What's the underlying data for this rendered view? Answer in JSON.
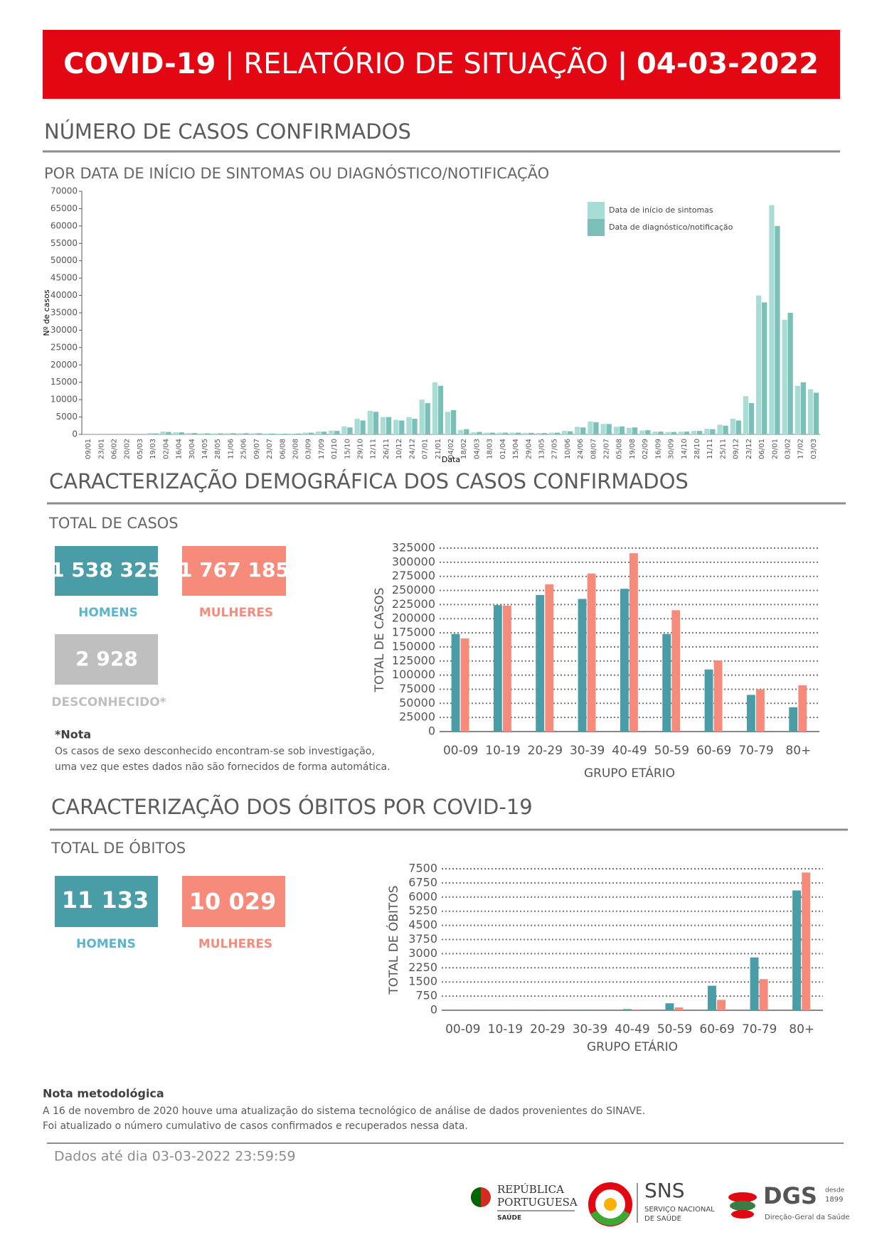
{
  "header": {
    "name": "COVID-19",
    "separator": "|",
    "report": "RELATÓRIO DE SITUAÇÃO",
    "date": "04-03-2022"
  },
  "cases_section": {
    "title": "NÚMERO DE CASOS CONFIRMADOS",
    "subtitle": "POR DATA DE INÍCIO DE SINTOMAS OU DIAGNÓSTICO/NOTIFICAÇÃO"
  },
  "demography": {
    "title": "CARACTERIZAÇÃO DEMOGRÁFICA DOS CASOS CONFIRMADOS",
    "totals_label": "TOTAL DE CASOS",
    "men": {
      "value": "1 538 325",
      "label": "HOMENS"
    },
    "women": {
      "value": "1 767 185",
      "label": "MULHERES"
    },
    "unknown": {
      "value": "2 928",
      "label": "DESCONHECIDO*"
    },
    "note_title": "*Nota",
    "note_lines": [
      "Os casos de sexo desconhecido encontram-se sob investigação,",
      "uma vez que estes dados não são fornecidos de forma automática."
    ]
  },
  "deaths": {
    "title": "CARACTERIZAÇÃO DOS ÓBITOS POR COVID-19",
    "totals_label": "TOTAL DE ÓBITOS",
    "men": {
      "value": "11 133",
      "label": "HOMENS"
    },
    "women": {
      "value": "10 029",
      "label": "MULHERES"
    }
  },
  "methodology": {
    "title": "Nota metodológica",
    "lines": [
      "A 16 de novembro de 2020 houve uma atualização do sistema tecnológico de análise de dados provenientes do SINAVE.",
      "Foi atualizado o número cumulativo de casos confirmados e recuperados nessa data."
    ]
  },
  "footer": {
    "text": "Dados até dia 03-03-2022 23:59:59"
  },
  "logos": {
    "rp_line1": "REPÚBLICA",
    "rp_line2": "PORTUGUESA",
    "rp_sub": "SAÚDE",
    "sns": "SNS",
    "sns_sub1": "SERVIÇO NACIONAL",
    "sns_sub2": "DE SAÚDE",
    "dgs": "DGS",
    "dgs_since1": "desde",
    "dgs_since2": "1899",
    "dgs_sub": "Direção-Geral da Saúde"
  },
  "chart_data": [
    {
      "type": "bar",
      "y_label": "Nº de casos",
      "x_label": "Data",
      "legend": "top-right",
      "grid": false,
      "categories": [
        "09/01",
        "23/01",
        "06/02",
        "20/02",
        "05/03",
        "19/03",
        "02/04",
        "16/04",
        "30/04",
        "14/05",
        "28/05",
        "11/06",
        "25/06",
        "09/07",
        "23/07",
        "06/08",
        "20/08",
        "03/09",
        "17/09",
        "01/10",
        "15/10",
        "29/10",
        "12/11",
        "26/11",
        "10/12",
        "24/12",
        "07/01",
        "21/01",
        "04/02",
        "18/02",
        "04/03",
        "18/03",
        "01/04",
        "15/04",
        "29/04",
        "13/05",
        "27/05",
        "10/06",
        "24/06",
        "08/07",
        "22/07",
        "05/08",
        "19/08",
        "02/09",
        "16/09",
        "30/09",
        "14/10",
        "28/10",
        "11/11",
        "25/11",
        "09/12",
        "23/12",
        "06/01",
        "20/01",
        "03/02",
        "17/02",
        "03/03"
      ],
      "series": [
        {
          "name": "Data de início de sintomas",
          "color": "#a8ddd6",
          "values": [
            0,
            0,
            0,
            0,
            0,
            400,
            800,
            600,
            400,
            300,
            300,
            350,
            350,
            350,
            250,
            200,
            250,
            500,
            800,
            1100,
            2300,
            4500,
            6800,
            5000,
            4200,
            5000,
            10000,
            15000,
            6500,
            1300,
            600,
            500,
            500,
            500,
            450,
            400,
            500,
            1000,
            2200,
            3700,
            3000,
            2200,
            1900,
            1100,
            800,
            700,
            800,
            1000,
            1600,
            2800,
            4500,
            11000,
            40000,
            66000,
            33000,
            14000,
            13000
          ]
        },
        {
          "name": "Data de diagnóstico/notificação",
          "color": "#7bbfb9",
          "values": [
            0,
            0,
            0,
            0,
            0,
            300,
            700,
            600,
            400,
            300,
            300,
            350,
            350,
            350,
            250,
            200,
            250,
            500,
            800,
            1000,
            2000,
            4000,
            6500,
            5000,
            4000,
            4500,
            9000,
            14000,
            7000,
            1500,
            700,
            500,
            500,
            500,
            450,
            400,
            500,
            900,
            2000,
            3500,
            3000,
            2300,
            2000,
            1200,
            800,
            700,
            800,
            1000,
            1500,
            2500,
            4000,
            9000,
            38000,
            60000,
            35000,
            15000,
            12000
          ]
        }
      ],
      "ylim": [
        0,
        70000
      ],
      "yticks": [
        0,
        5000,
        10000,
        15000,
        20000,
        25000,
        30000,
        35000,
        40000,
        45000,
        50000,
        55000,
        60000,
        65000,
        70000
      ]
    },
    {
      "type": "bar",
      "y_label": "TOTAL DE CASOS",
      "x_label": "GRUPO ETÁRIO",
      "grid": true,
      "categories": [
        "00-09",
        "10-19",
        "20-29",
        "30-39",
        "40-49",
        "50-59",
        "60-69",
        "70-79",
        "80+"
      ],
      "series": [
        {
          "color": "#4a9ca6",
          "values": [
            173000,
            224000,
            242000,
            235000,
            253000,
            173000,
            110000,
            65000,
            43000
          ]
        },
        {
          "color": "#f68b7b",
          "values": [
            165000,
            223000,
            261000,
            280000,
            316000,
            215000,
            126000,
            75000,
            82000
          ]
        }
      ],
      "ylim": [
        0,
        325000
      ],
      "yticks": [
        0,
        25000,
        50000,
        75000,
        100000,
        125000,
        150000,
        175000,
        200000,
        225000,
        250000,
        275000,
        300000,
        325000
      ]
    },
    {
      "type": "bar",
      "y_label": "TOTAL DE ÓBITOS",
      "x_label": "GRUPO ETÁRIO",
      "grid": true,
      "categories": [
        "00-09",
        "10-19",
        "20-29",
        "30-39",
        "40-49",
        "50-59",
        "60-69",
        "70-79",
        "80+"
      ],
      "series": [
        {
          "color": "#4a9ca6",
          "values": [
            2,
            2,
            5,
            15,
            60,
            370,
            1300,
            2800,
            6350
          ]
        },
        {
          "color": "#f68b7b",
          "values": [
            2,
            2,
            3,
            8,
            25,
            150,
            550,
            1650,
            7300
          ]
        }
      ],
      "ylim": [
        0,
        7500
      ],
      "yticks": [
        0,
        750,
        1500,
        2250,
        3000,
        3750,
        4500,
        5250,
        6000,
        6750,
        7500
      ]
    }
  ]
}
